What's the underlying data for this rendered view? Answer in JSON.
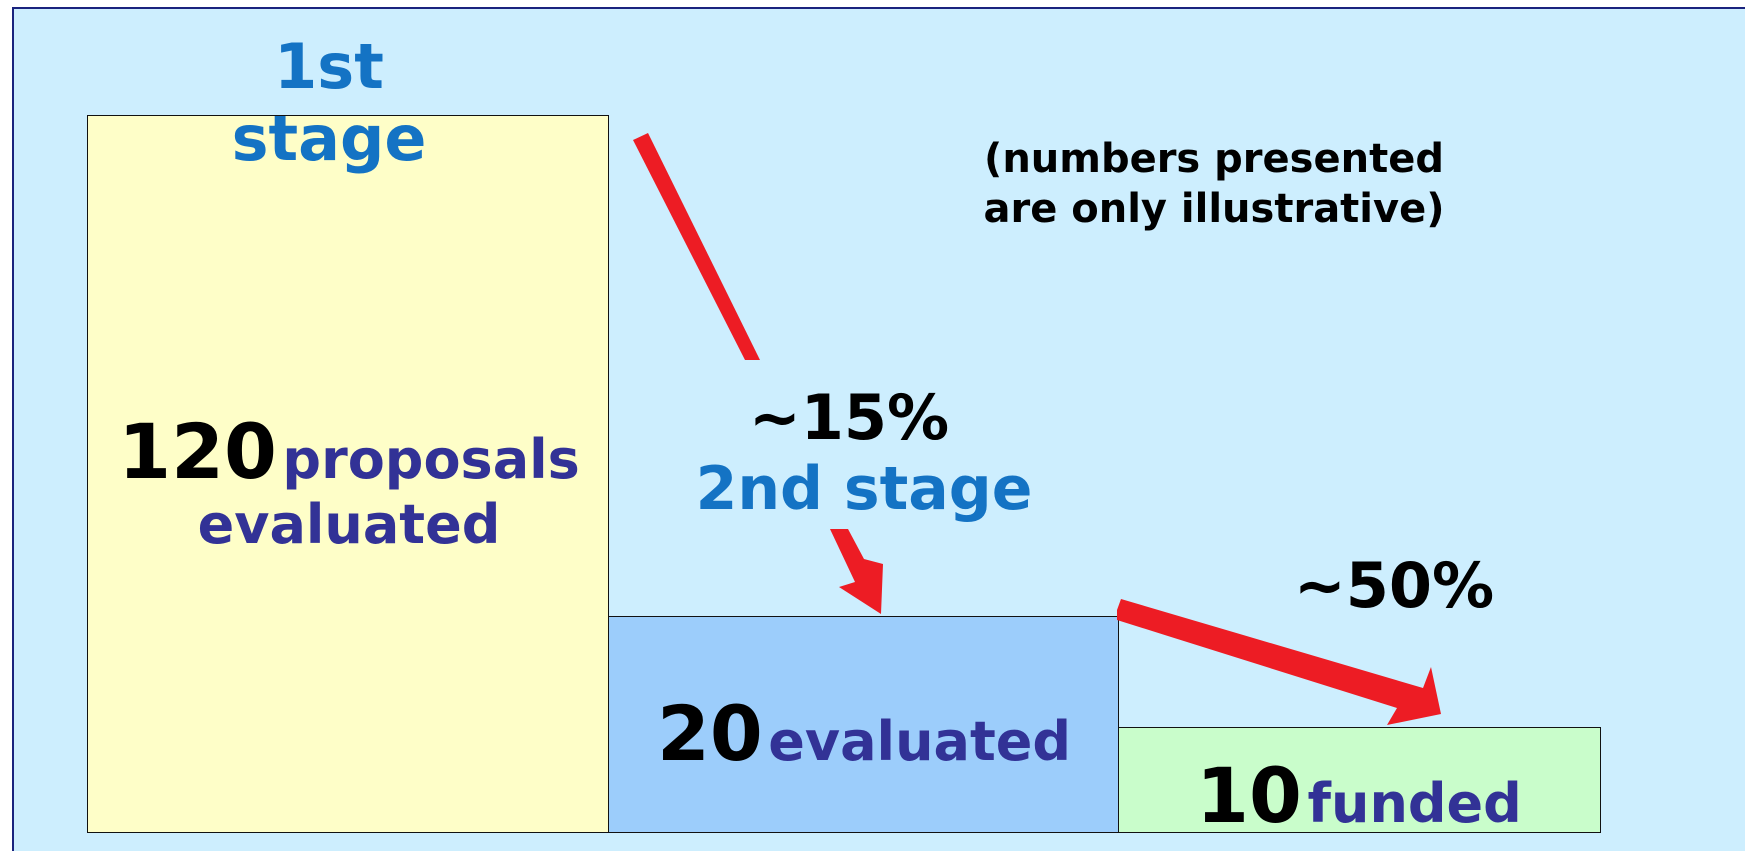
{
  "stage1": {
    "title_line1": "1st",
    "title_line2": "stage",
    "count": "120",
    "label_line1": "proposals",
    "label_line2": "evaluated"
  },
  "stage2": {
    "title": "2nd stage",
    "count": "20",
    "label": "evaluated"
  },
  "funded": {
    "count": "10",
    "label": "funded"
  },
  "rates": {
    "stage1_to_stage2": "~15%",
    "stage2_to_funded": "~50%"
  },
  "note": {
    "line1": "(numbers presented",
    "line2": "are only illustrative)"
  },
  "colors": {
    "background": "#cdeefe",
    "stage1_box": "#fefec8",
    "stage2_box": "#9ccdfb",
    "funded_box": "#c9fdcb",
    "stage_title": "#1473c4",
    "label_text": "#323296",
    "arrow": "#ed1c24"
  }
}
